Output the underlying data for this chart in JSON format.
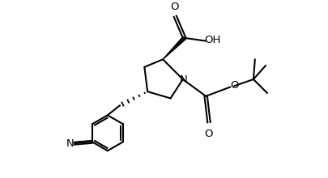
{
  "background_color": "#ffffff",
  "line_color": "#000000",
  "line_width": 1.5,
  "font_size": 9.5,
  "xlim": [
    -3.8,
    3.2
  ],
  "ylim": [
    -3.2,
    2.4
  ],
  "figsize": [
    4.06,
    2.2
  ],
  "dpi": 100
}
